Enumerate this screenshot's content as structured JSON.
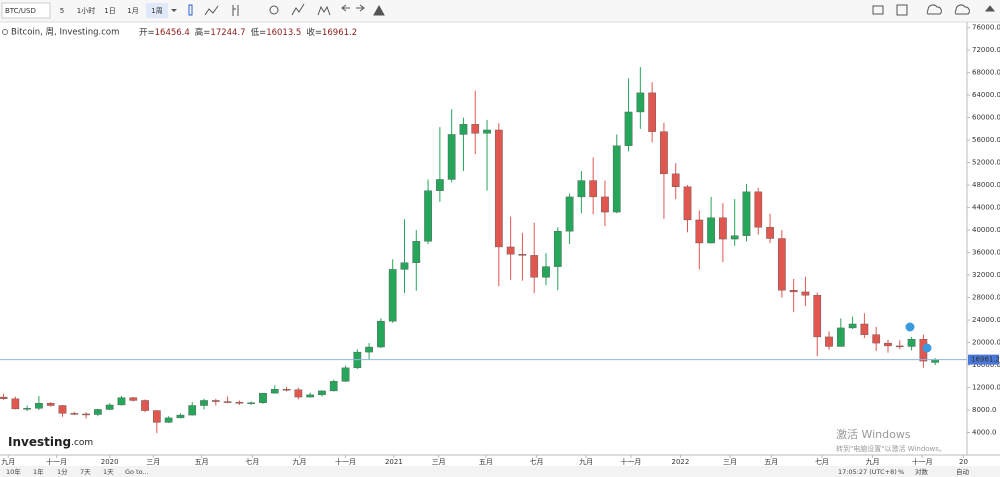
{
  "toolbar": {
    "symbol": "BTC/USD",
    "intervals": [
      "5",
      "1小时",
      "1日",
      "1月",
      "1周"
    ]
  },
  "legend": {
    "title": "Bitcoin, 周, Investing.com",
    "labels": [
      "开=",
      "高=",
      "低=",
      "收="
    ]
  },
  "watermark": {
    "brand": "Investing",
    "suffix": ".com"
  },
  "windows_notice": {
    "title": "激活 Windows",
    "text": "转到\"电脑设置\"以激活 Windows。"
  },
  "footer": {
    "ranges": [
      "10年",
      "1年",
      "1分",
      "7天",
      "1天",
      "Go to..."
    ],
    "time": "17:05:27 (UTC+8)",
    "options": [
      "%",
      "对数",
      "自动"
    ]
  },
  "chart_data": {
    "type": "candlestick",
    "up_color": "#26a65b",
    "down_color": "#e0574f",
    "grid": false,
    "price_line_color": "#8fb3e6",
    "open": [
      10300,
      10000,
      8200,
      8300,
      9200,
      8800,
      7400,
      7300,
      7200,
      8100,
      8900,
      10200,
      9700,
      7900,
      5800,
      6600,
      7100,
      8800,
      9700,
      9500,
      9400,
      9200,
      9300,
      11000,
      11700,
      11600,
      10300,
      10700,
      11400,
      13100,
      15500,
      18300,
      19200,
      23800,
      33000,
      34200,
      38000,
      47000,
      49000,
      57000,
      58800,
      57200,
      57800,
      37000,
      35700,
      35500,
      31600,
      33500,
      39800,
      45900,
      48800,
      45900,
      43200,
      55000,
      61000,
      64400,
      57500,
      50000,
      47700,
      41800,
      37700,
      42200,
      38400,
      39000,
      46800,
      40500,
      38500,
      29300,
      29000,
      28400,
      21000,
      19300,
      22600,
      23300,
      21400,
      19900,
      19400,
      19300,
      20600,
      16456.4
    ],
    "high": [
      10900,
      10400,
      8800,
      10500,
      9400,
      8900,
      7700,
      7600,
      8200,
      9200,
      10500,
      10300,
      9900,
      8000,
      6900,
      7400,
      9400,
      10000,
      10000,
      10400,
      9700,
      9500,
      11000,
      12400,
      12100,
      12000,
      11100,
      11500,
      13400,
      15900,
      18800,
      19900,
      24300,
      34800,
      41900,
      40000,
      49000,
      58300,
      61500,
      60000,
      64800,
      59600,
      59000,
      42400,
      39500,
      41300,
      35900,
      40500,
      46500,
      50500,
      52900,
      48800,
      57000,
      67000,
      69000,
      66300,
      59100,
      51900,
      48000,
      43500,
      45900,
      44800,
      45500,
      48200,
      47500,
      42900,
      40000,
      31300,
      31700,
      28900,
      22000,
      24300,
      24600,
      25200,
      22800,
      20500,
      20400,
      21000,
      21400,
      17244.7
    ],
    "low": [
      9800,
      8100,
      7800,
      8000,
      8600,
      6800,
      7100,
      6500,
      6900,
      8000,
      8800,
      9500,
      7600,
      3900,
      5700,
      6500,
      7000,
      8100,
      8800,
      9200,
      8900,
      8900,
      9100,
      10900,
      11300,
      9900,
      10200,
      10400,
      11300,
      13000,
      15300,
      16900,
      19000,
      23500,
      28800,
      29200,
      37500,
      45000,
      48500,
      50500,
      53500,
      47000,
      30000,
      31100,
      31000,
      28800,
      30200,
      29300,
      37500,
      43000,
      42800,
      40700,
      43000,
      54000,
      58000,
      55600,
      42000,
      45500,
      39600,
      33000,
      37600,
      34300,
      37200,
      38000,
      39200,
      37700,
      28000,
      25400,
      26500,
      17600,
      18700,
      19300,
      22400,
      20800,
      18500,
      18200,
      18800,
      18600,
      15500,
      16013.5
    ],
    "close": [
      10000,
      8200,
      8300,
      9200,
      8800,
      7400,
      7300,
      7200,
      8100,
      8900,
      10200,
      9700,
      7900,
      5800,
      6600,
      7100,
      8800,
      9700,
      9500,
      9400,
      9200,
      9300,
      11000,
      11700,
      11600,
      10300,
      10700,
      11400,
      13100,
      15500,
      18300,
      19200,
      23800,
      33000,
      34200,
      38000,
      47000,
      49000,
      57000,
      58800,
      57200,
      57800,
      37000,
      35700,
      35500,
      31600,
      33500,
      39800,
      45900,
      48800,
      45900,
      43200,
      55000,
      61000,
      64400,
      57500,
      50000,
      47700,
      41800,
      37700,
      42200,
      38400,
      39000,
      46800,
      40500,
      38500,
      29300,
      29000,
      28400,
      21000,
      19300,
      22600,
      23300,
      21400,
      19900,
      19400,
      19300,
      20600,
      16700,
      16961.2
    ],
    "xlim": [
      -0.3,
      81.7
    ],
    "xticks": [
      {
        "value": 0.4,
        "label": "九月"
      },
      {
        "value": 4.5,
        "label": "十一月"
      },
      {
        "value": 9.0,
        "label": "2020"
      },
      {
        "value": 12.7,
        "label": "三月"
      },
      {
        "value": 16.8,
        "label": "五月"
      },
      {
        "value": 21.1,
        "label": "七月"
      },
      {
        "value": 25.1,
        "label": "九月"
      },
      {
        "value": 29.0,
        "label": "十一月"
      },
      {
        "value": 33.1,
        "label": "2021"
      },
      {
        "value": 36.9,
        "label": "三月"
      },
      {
        "value": 40.9,
        "label": "五月"
      },
      {
        "value": 45.2,
        "label": "七月"
      },
      {
        "value": 49.4,
        "label": "九月"
      },
      {
        "value": 53.2,
        "label": "十一月"
      },
      {
        "value": 57.4,
        "label": "2022"
      },
      {
        "value": 61.6,
        "label": "三月"
      },
      {
        "value": 65.1,
        "label": "五月"
      },
      {
        "value": 69.4,
        "label": "七月"
      },
      {
        "value": 73.7,
        "label": "九月"
      },
      {
        "value": 77.9,
        "label": "十一月"
      },
      {
        "value": 81.4,
        "label": "20"
      }
    ],
    "ylim": [
      0,
      77000
    ],
    "yticks": [
      {
        "value": 4000,
        "label": "4000.0"
      },
      {
        "value": 8000,
        "label": "8000.0"
      },
      {
        "value": 12000,
        "label": "12000.0"
      },
      {
        "value": 16000,
        "label": "16000.0"
      },
      {
        "value": 20000,
        "label": "20000.0"
      },
      {
        "value": 24000,
        "label": "24000.0"
      },
      {
        "value": 28000,
        "label": "28000.0"
      },
      {
        "value": 32000,
        "label": "32000.0"
      },
      {
        "value": 36000,
        "label": "36000.0"
      },
      {
        "value": 40000,
        "label": "40000.0"
      },
      {
        "value": 44000,
        "label": "44000.0"
      },
      {
        "value": 48000,
        "label": "48000.0"
      },
      {
        "value": 52000,
        "label": "52000.0"
      },
      {
        "value": 56000,
        "label": "56000.0"
      },
      {
        "value": 60000,
        "label": "60000.0"
      },
      {
        "value": 64000,
        "label": "64000.0"
      },
      {
        "value": 68000,
        "label": "68000.0"
      },
      {
        "value": 72000,
        "label": "72000.0"
      },
      {
        "value": 76000,
        "label": "76000.0"
      }
    ]
  }
}
